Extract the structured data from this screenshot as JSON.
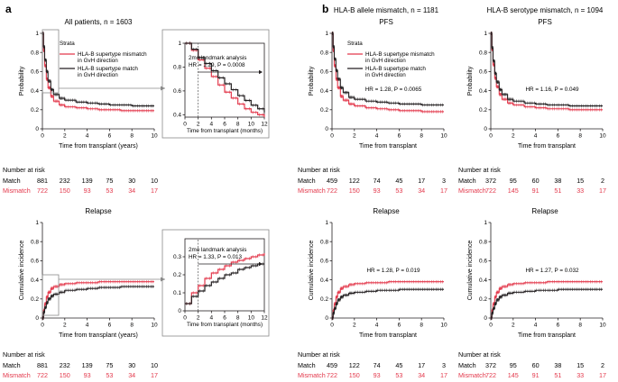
{
  "colors": {
    "match": "#231f20",
    "mismatch": "#e3394c",
    "guide": "#8a8a8a"
  },
  "labels": {
    "panel_a": "a",
    "panel_b": "b",
    "title_a": "All patients, n = 1603",
    "title_b_allele": "HLA-B allele mismatch, n = 1181",
    "title_b_serotype": "HLA-B serotype mismatch, n = 1094",
    "pfs": "PFS",
    "relapse": "Relapse",
    "strata": "Strata",
    "legend_mismatch": [
      "HLA-B supertype mismatch",
      "in GvH direction"
    ],
    "legend_match": [
      "HLA-B supertype match",
      "in GvH direction"
    ],
    "ylabel_prob": "Probability",
    "ylabel_ci": "Cumulative incidence",
    "xlabel_years": "Time from transplant (years)",
    "xlabel": "Time from transplant",
    "xlabel_months": "Time from transplant (months)",
    "landmark": "2mo landmark analysis",
    "number_at_risk": "Number at risk",
    "match": "Match",
    "mismatch": "Mismatch"
  },
  "chart_data": [
    {
      "id": "a_pfs",
      "type": "line",
      "title": "All patients, n = 1603",
      "xlabel": "Time from transplant (years)",
      "ylabel": "Probability",
      "xlim": [
        0,
        10
      ],
      "ylim": [
        0,
        1
      ],
      "xticks": [
        0,
        2,
        4,
        6,
        8,
        10
      ],
      "yticks": [
        0,
        0.2,
        0.4,
        0.6,
        0.8,
        1.0
      ],
      "series": [
        {
          "name": "HLA-B supertype mismatch in GvH direction",
          "x": [
            0,
            0.1,
            0.2,
            0.35,
            0.5,
            0.75,
            1,
            1.5,
            2,
            3,
            4,
            5,
            6,
            7,
            8,
            9,
            10
          ],
          "y": [
            1,
            0.82,
            0.66,
            0.52,
            0.43,
            0.34,
            0.29,
            0.25,
            0.23,
            0.22,
            0.21,
            0.2,
            0.2,
            0.19,
            0.19,
            0.19,
            0.19
          ]
        },
        {
          "name": "HLA-B supertype match in GvH direction",
          "x": [
            0,
            0.1,
            0.2,
            0.35,
            0.5,
            0.75,
            1,
            1.5,
            2,
            3,
            4,
            5,
            6,
            7,
            8,
            9,
            10
          ],
          "y": [
            1,
            0.86,
            0.72,
            0.6,
            0.5,
            0.41,
            0.36,
            0.32,
            0.3,
            0.28,
            0.27,
            0.26,
            0.25,
            0.25,
            0.24,
            0.24,
            0.24
          ]
        }
      ],
      "risk_table": {
        "times": [
          0,
          2,
          4,
          6,
          8,
          10
        ],
        "match": [
          881,
          232,
          139,
          75,
          30,
          10
        ],
        "mismatch": [
          722,
          150,
          93,
          53,
          34,
          17
        ]
      }
    },
    {
      "id": "a_pfs_inset",
      "type": "line",
      "annotation": "HR = 1.29, P = 0.0008",
      "xlabel": "Time from transplant (months)",
      "xlim": [
        0,
        12
      ],
      "ylim": [
        0.38,
        1
      ],
      "xticks": [
        0,
        2,
        4,
        6,
        8,
        10,
        12
      ],
      "yticks": [
        0.4,
        0.6,
        0.8,
        1.0
      ],
      "landmark_month": 2,
      "series": [
        {
          "name": "Mismatch",
          "x": [
            0,
            1,
            2,
            3,
            4,
            5,
            6,
            7,
            8,
            9,
            10,
            11,
            12
          ],
          "y": [
            1.0,
            0.94,
            0.86,
            0.79,
            0.72,
            0.65,
            0.59,
            0.54,
            0.49,
            0.45,
            0.42,
            0.4,
            0.38
          ]
        },
        {
          "name": "Match",
          "x": [
            0,
            1,
            2,
            3,
            4,
            5,
            6,
            7,
            8,
            9,
            10,
            11,
            12
          ],
          "y": [
            1.0,
            0.95,
            0.88,
            0.83,
            0.77,
            0.71,
            0.66,
            0.61,
            0.56,
            0.52,
            0.48,
            0.45,
            0.42
          ]
        }
      ]
    },
    {
      "id": "a_relapse",
      "type": "line",
      "title": "Relapse",
      "xlabel": "Time from transplant (years)",
      "ylabel": "Cumulative incidence",
      "xlim": [
        0,
        10
      ],
      "ylim": [
        0,
        1
      ],
      "xticks": [
        0,
        2,
        4,
        6,
        8,
        10
      ],
      "yticks": [
        0,
        0.2,
        0.4,
        0.6,
        0.8,
        1.0
      ],
      "series": [
        {
          "name": "Mismatch",
          "x": [
            0,
            0.1,
            0.2,
            0.35,
            0.5,
            0.75,
            1,
            1.5,
            2,
            3,
            4,
            5,
            6,
            7,
            8,
            9,
            10
          ],
          "y": [
            0,
            0.08,
            0.15,
            0.22,
            0.27,
            0.31,
            0.33,
            0.35,
            0.36,
            0.37,
            0.37,
            0.38,
            0.38,
            0.38,
            0.38,
            0.38,
            0.38
          ]
        },
        {
          "name": "Match",
          "x": [
            0,
            0.1,
            0.2,
            0.35,
            0.5,
            0.75,
            1,
            1.5,
            2,
            3,
            4,
            5,
            6,
            7,
            8,
            9,
            10
          ],
          "y": [
            0,
            0.06,
            0.11,
            0.16,
            0.2,
            0.23,
            0.25,
            0.27,
            0.29,
            0.3,
            0.31,
            0.32,
            0.32,
            0.33,
            0.33,
            0.33,
            0.33
          ]
        }
      ],
      "risk_table": {
        "times": [
          0,
          2,
          4,
          6,
          8,
          10
        ],
        "match": [
          881,
          232,
          139,
          75,
          30,
          10
        ],
        "mismatch": [
          722,
          150,
          93,
          53,
          34,
          17
        ]
      }
    },
    {
      "id": "a_relapse_inset",
      "type": "line",
      "annotation": "HR = 1.33, P = 0.013",
      "xlabel": "Time from transplant (months)",
      "xlim": [
        0,
        12
      ],
      "ylim": [
        0,
        0.4
      ],
      "xticks": [
        0,
        2,
        4,
        6,
        8,
        10,
        12
      ],
      "yticks": [
        0,
        0.1,
        0.2,
        0.3
      ],
      "landmark_month": 2,
      "series": [
        {
          "name": "Mismatch",
          "x": [
            0,
            1,
            2,
            3,
            4,
            5,
            6,
            7,
            8,
            9,
            10,
            11,
            12
          ],
          "y": [
            0.04,
            0.1,
            0.14,
            0.18,
            0.21,
            0.23,
            0.25,
            0.27,
            0.28,
            0.29,
            0.3,
            0.31,
            0.32
          ]
        },
        {
          "name": "Match",
          "x": [
            0,
            1,
            2,
            3,
            4,
            5,
            6,
            7,
            8,
            9,
            10,
            11,
            12
          ],
          "y": [
            0.04,
            0.08,
            0.11,
            0.14,
            0.16,
            0.18,
            0.2,
            0.21,
            0.23,
            0.24,
            0.25,
            0.26,
            0.26
          ]
        }
      ]
    },
    {
      "id": "b_allele_pfs",
      "type": "line",
      "title": "PFS",
      "annotation": "HR = 1.28, P = 0.0065",
      "xlabel": "Time from transplant",
      "ylabel": "Probability",
      "xlim": [
        0,
        10
      ],
      "ylim": [
        0,
        1
      ],
      "xticks": [
        0,
        2,
        4,
        6,
        8,
        10
      ],
      "yticks": [
        0,
        0.2,
        0.4,
        0.6,
        0.8,
        1.0
      ],
      "series": [
        {
          "name": "Mismatch",
          "x": [
            0,
            0.1,
            0.2,
            0.35,
            0.5,
            0.75,
            1,
            1.5,
            2,
            3,
            4,
            5,
            6,
            7,
            8,
            9,
            10
          ],
          "y": [
            1,
            0.82,
            0.66,
            0.52,
            0.43,
            0.34,
            0.3,
            0.26,
            0.24,
            0.22,
            0.21,
            0.2,
            0.19,
            0.19,
            0.18,
            0.18,
            0.18
          ]
        },
        {
          "name": "Match",
          "x": [
            0,
            0.1,
            0.2,
            0.35,
            0.5,
            0.75,
            1,
            1.5,
            2,
            3,
            4,
            5,
            6,
            7,
            8,
            9,
            10
          ],
          "y": [
            1,
            0.86,
            0.73,
            0.61,
            0.52,
            0.43,
            0.38,
            0.33,
            0.31,
            0.29,
            0.28,
            0.27,
            0.26,
            0.26,
            0.25,
            0.25,
            0.25
          ]
        }
      ],
      "risk_table": {
        "times": [
          0,
          2,
          4,
          6,
          8,
          10
        ],
        "match": [
          459,
          122,
          74,
          45,
          17,
          3
        ],
        "mismatch": [
          722,
          150,
          93,
          53,
          34,
          17
        ]
      }
    },
    {
      "id": "b_sero_pfs",
      "type": "line",
      "title": "PFS",
      "annotation": "HR = 1.16, P = 0.049",
      "xlabel": "Time from transplant",
      "ylabel": "Probability",
      "xlim": [
        0,
        10
      ],
      "ylim": [
        0,
        1
      ],
      "xticks": [
        0,
        2,
        4,
        6,
        8,
        10
      ],
      "yticks": [
        0,
        0.2,
        0.4,
        0.6,
        0.8,
        1.0
      ],
      "series": [
        {
          "name": "Mismatch",
          "x": [
            0,
            0.1,
            0.2,
            0.35,
            0.5,
            0.75,
            1,
            1.5,
            2,
            3,
            4,
            5,
            6,
            7,
            8,
            9,
            10
          ],
          "y": [
            1,
            0.83,
            0.67,
            0.53,
            0.44,
            0.36,
            0.31,
            0.27,
            0.25,
            0.23,
            0.22,
            0.21,
            0.21,
            0.2,
            0.2,
            0.2,
            0.2
          ]
        },
        {
          "name": "Match",
          "x": [
            0,
            0.1,
            0.2,
            0.35,
            0.5,
            0.75,
            1,
            1.5,
            2,
            3,
            4,
            5,
            6,
            7,
            8,
            9,
            10
          ],
          "y": [
            1,
            0.85,
            0.71,
            0.58,
            0.49,
            0.41,
            0.36,
            0.31,
            0.29,
            0.27,
            0.26,
            0.25,
            0.25,
            0.24,
            0.24,
            0.24,
            0.24
          ]
        }
      ],
      "risk_table": {
        "times": [
          0,
          2,
          4,
          6,
          8,
          10
        ],
        "match": [
          372,
          95,
          60,
          38,
          15,
          2
        ],
        "mismatch": [
          722,
          145,
          91,
          51,
          33,
          17
        ]
      }
    },
    {
      "id": "b_allele_relapse",
      "type": "line",
      "title": "Relapse",
      "annotation": "HR = 1.28, P = 0.019",
      "xlabel": "Time from transplant",
      "ylabel": "Cumulative incidence",
      "xlim": [
        0,
        10
      ],
      "ylim": [
        0,
        1
      ],
      "xticks": [
        0,
        2,
        4,
        6,
        8,
        10
      ],
      "yticks": [
        0,
        0.2,
        0.4,
        0.6,
        0.8,
        1.0
      ],
      "series": [
        {
          "name": "Mismatch",
          "x": [
            0,
            0.1,
            0.2,
            0.35,
            0.5,
            0.75,
            1,
            1.5,
            2,
            3,
            4,
            5,
            6,
            7,
            8,
            9,
            10
          ],
          "y": [
            0,
            0.08,
            0.15,
            0.22,
            0.27,
            0.31,
            0.33,
            0.35,
            0.36,
            0.37,
            0.37,
            0.38,
            0.38,
            0.38,
            0.38,
            0.38,
            0.38
          ]
        },
        {
          "name": "Match",
          "x": [
            0,
            0.1,
            0.2,
            0.35,
            0.5,
            0.75,
            1,
            1.5,
            2,
            3,
            4,
            5,
            6,
            7,
            8,
            9,
            10
          ],
          "y": [
            0,
            0.05,
            0.1,
            0.15,
            0.19,
            0.22,
            0.24,
            0.26,
            0.27,
            0.28,
            0.29,
            0.29,
            0.3,
            0.3,
            0.3,
            0.3,
            0.3
          ]
        }
      ],
      "risk_table": {
        "times": [
          0,
          2,
          4,
          6,
          8,
          10
        ],
        "match": [
          459,
          122,
          74,
          45,
          17,
          3
        ],
        "mismatch": [
          722,
          150,
          93,
          53,
          34,
          17
        ]
      }
    },
    {
      "id": "b_sero_relapse",
      "type": "line",
      "title": "Relapse",
      "annotation": "HR = 1.27, P = 0.032",
      "xlabel": "Time from transplant",
      "ylabel": "Cumulative incidence",
      "xlim": [
        0,
        10
      ],
      "ylim": [
        0,
        1
      ],
      "xticks": [
        0,
        2,
        4,
        6,
        8,
        10
      ],
      "yticks": [
        0,
        0.2,
        0.4,
        0.6,
        0.8,
        1.0
      ],
      "series": [
        {
          "name": "Mismatch",
          "x": [
            0,
            0.1,
            0.2,
            0.35,
            0.5,
            0.75,
            1,
            1.5,
            2,
            3,
            4,
            5,
            6,
            7,
            8,
            9,
            10
          ],
          "y": [
            0,
            0.08,
            0.15,
            0.22,
            0.27,
            0.31,
            0.33,
            0.35,
            0.36,
            0.37,
            0.37,
            0.38,
            0.38,
            0.38,
            0.38,
            0.38,
            0.38
          ]
        },
        {
          "name": "Match",
          "x": [
            0,
            0.1,
            0.2,
            0.35,
            0.5,
            0.75,
            1,
            1.5,
            2,
            3,
            4,
            5,
            6,
            7,
            8,
            9,
            10
          ],
          "y": [
            0,
            0.05,
            0.1,
            0.15,
            0.19,
            0.22,
            0.24,
            0.26,
            0.27,
            0.28,
            0.29,
            0.29,
            0.3,
            0.3,
            0.3,
            0.3,
            0.3
          ]
        }
      ],
      "risk_table": {
        "times": [
          0,
          2,
          4,
          6,
          8,
          10
        ],
        "match": [
          372,
          95,
          60,
          38,
          15,
          2
        ],
        "mismatch": [
          722,
          145,
          91,
          51,
          33,
          17
        ]
      }
    }
  ]
}
